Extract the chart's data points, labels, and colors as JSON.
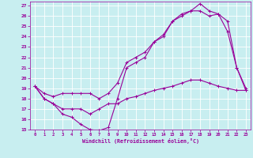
{
  "xlabel": "Windchill (Refroidissement éolien,°C)",
  "background_color": "#c8eef0",
  "grid_color": "#ffffff",
  "line_color": "#990099",
  "xlim": [
    -0.5,
    23.5
  ],
  "ylim": [
    15,
    27.4
  ],
  "x_ticks": [
    0,
    1,
    2,
    3,
    4,
    5,
    6,
    7,
    8,
    9,
    10,
    11,
    12,
    13,
    14,
    15,
    16,
    17,
    18,
    19,
    20,
    21,
    22,
    23
  ],
  "y_ticks": [
    15,
    16,
    17,
    18,
    19,
    20,
    21,
    22,
    23,
    24,
    25,
    26,
    27
  ],
  "line1_x": [
    0,
    1,
    2,
    3,
    4,
    5,
    6,
    7,
    8,
    9,
    10,
    11,
    12,
    13,
    14,
    15,
    16,
    17,
    18,
    19,
    20,
    21,
    22,
    23
  ],
  "line1_y": [
    19.2,
    18.0,
    17.5,
    16.5,
    16.2,
    15.5,
    15.0,
    14.9,
    15.2,
    18.0,
    21.0,
    21.5,
    22.0,
    23.5,
    24.0,
    25.5,
    26.0,
    26.5,
    27.2,
    26.5,
    26.2,
    24.5,
    21.0,
    18.8
  ],
  "line2_x": [
    0,
    1,
    2,
    3,
    4,
    5,
    6,
    7,
    8,
    9,
    10,
    11,
    12,
    13,
    14,
    15,
    16,
    17,
    18,
    19,
    20,
    21,
    22,
    23
  ],
  "line2_y": [
    19.2,
    18.5,
    18.2,
    18.5,
    18.5,
    18.5,
    18.5,
    18.0,
    18.5,
    19.5,
    21.5,
    22.0,
    22.5,
    23.5,
    24.2,
    25.5,
    26.2,
    26.5,
    26.5,
    26.0,
    26.2,
    25.5,
    21.0,
    19.0
  ],
  "line3_x": [
    0,
    1,
    2,
    3,
    4,
    5,
    6,
    7,
    8,
    9,
    10,
    11,
    12,
    13,
    14,
    15,
    16,
    17,
    18,
    19,
    20,
    21,
    22,
    23
  ],
  "line3_y": [
    19.2,
    18.0,
    17.5,
    17.0,
    17.0,
    17.0,
    16.5,
    17.0,
    17.5,
    17.5,
    18.0,
    18.2,
    18.5,
    18.8,
    19.0,
    19.2,
    19.5,
    19.8,
    19.8,
    19.5,
    19.2,
    19.0,
    18.8,
    18.8
  ]
}
